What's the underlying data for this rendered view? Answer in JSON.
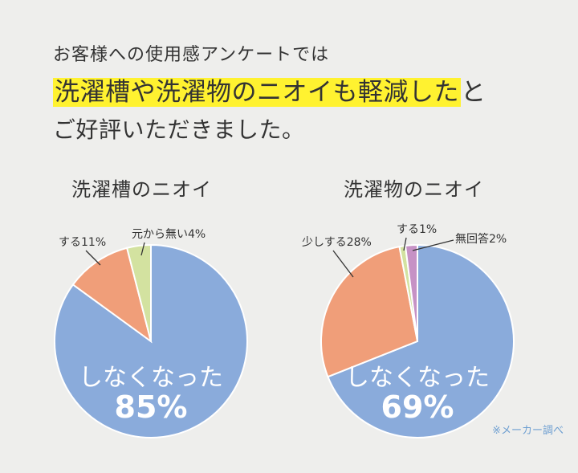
{
  "header": {
    "line1": "お客様への使用感アンケートでは",
    "line2_highlight": "洗濯槽や洗濯物のニオイも軽減した",
    "line2_tail": "と",
    "line3": "ご好評いただきました。"
  },
  "source_note": "※メーカー調べ",
  "colors": {
    "blue": "#8aabdb",
    "salmon": "#f09e79",
    "green": "#d3e2a0",
    "purple": "#c692c5",
    "highlight": "#fff230"
  },
  "chart_data": [
    {
      "type": "pie",
      "title": "洗濯槽のニオイ",
      "slices": [
        {
          "label": "しなくなった",
          "value": 85,
          "value_text": "85%",
          "color": "#8aabdb"
        },
        {
          "label": "する11%",
          "value": 11,
          "color": "#f09e79"
        },
        {
          "label": "元から無い4%",
          "value": 4,
          "color": "#d3e2a0"
        }
      ]
    },
    {
      "type": "pie",
      "title": "洗濯物のニオイ",
      "slices": [
        {
          "label": "しなくなった",
          "value": 69,
          "value_text": "69%",
          "color": "#8aabdb"
        },
        {
          "label": "少しする28%",
          "value": 28,
          "color": "#f09e79"
        },
        {
          "label": "する1%",
          "value": 1,
          "color": "#d3e2a0"
        },
        {
          "label": "無回答2%",
          "value": 2,
          "color": "#c692c5"
        }
      ]
    }
  ]
}
